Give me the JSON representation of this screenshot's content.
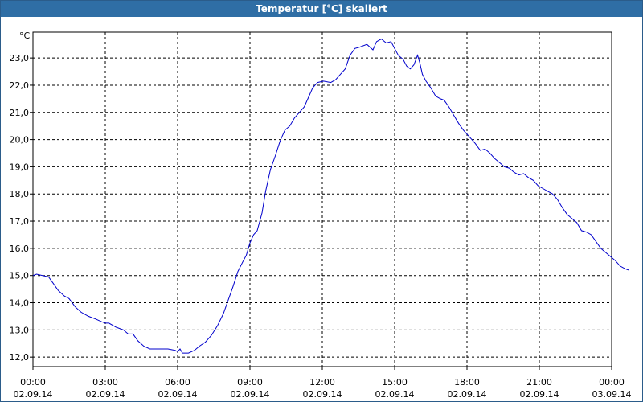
{
  "window": {
    "title": "Temperatur [°C] skaliert"
  },
  "chart_data": {
    "type": "line",
    "title": "Temperatur [°C] skaliert",
    "ylabel": "°C",
    "xlabel": "",
    "ylim": [
      11.65,
      23.95
    ],
    "xlim_hours": [
      0,
      24
    ],
    "grid": true,
    "legend": "none",
    "line_color": "#0000cc",
    "yticks": [
      {
        "value": 12,
        "label": "12,0"
      },
      {
        "value": 13,
        "label": "13,0"
      },
      {
        "value": 14,
        "label": "14,0"
      },
      {
        "value": 15,
        "label": "15,0"
      },
      {
        "value": 16,
        "label": "16,0"
      },
      {
        "value": 17,
        "label": "17,0"
      },
      {
        "value": 18,
        "label": "18,0"
      },
      {
        "value": 19,
        "label": "19,0"
      },
      {
        "value": 20,
        "label": "20,0"
      },
      {
        "value": 21,
        "label": "21,0"
      },
      {
        "value": 22,
        "label": "22,0"
      },
      {
        "value": 23,
        "label": "23,0"
      }
    ],
    "xticks": [
      {
        "hour": 0,
        "time": "00:00",
        "date": "02.09.14"
      },
      {
        "hour": 3,
        "time": "03:00",
        "date": "02.09.14"
      },
      {
        "hour": 6,
        "time": "06:00",
        "date": "02.09.14"
      },
      {
        "hour": 9,
        "time": "09:00",
        "date": "02.09.14"
      },
      {
        "hour": 12,
        "time": "12:00",
        "date": "02.09.14"
      },
      {
        "hour": 15,
        "time": "15:00",
        "date": "02.09.14"
      },
      {
        "hour": 18,
        "time": "18:00",
        "date": "02.09.14"
      },
      {
        "hour": 21,
        "time": "21:00",
        "date": "02.09.14"
      },
      {
        "hour": 24,
        "time": "00:00",
        "date": "03.09.14"
      }
    ],
    "series": [
      {
        "name": "",
        "points": [
          [
            0.0,
            15.0
          ],
          [
            0.15,
            15.05
          ],
          [
            0.4,
            15.0
          ],
          [
            0.65,
            14.95
          ],
          [
            0.85,
            14.7
          ],
          [
            1.05,
            14.45
          ],
          [
            1.3,
            14.25
          ],
          [
            1.5,
            14.15
          ],
          [
            1.75,
            13.85
          ],
          [
            2.0,
            13.65
          ],
          [
            2.3,
            13.5
          ],
          [
            2.6,
            13.4
          ],
          [
            2.85,
            13.3
          ],
          [
            3.0,
            13.25
          ],
          [
            3.15,
            13.25
          ],
          [
            3.45,
            13.1
          ],
          [
            3.75,
            13.0
          ],
          [
            3.95,
            12.85
          ],
          [
            4.15,
            12.85
          ],
          [
            4.35,
            12.6
          ],
          [
            4.6,
            12.4
          ],
          [
            4.85,
            12.3
          ],
          [
            5.2,
            12.3
          ],
          [
            5.6,
            12.3
          ],
          [
            5.9,
            12.25
          ],
          [
            6.0,
            12.2
          ],
          [
            6.1,
            12.3
          ],
          [
            6.2,
            12.15
          ],
          [
            6.45,
            12.15
          ],
          [
            6.7,
            12.25
          ],
          [
            6.9,
            12.4
          ],
          [
            7.15,
            12.55
          ],
          [
            7.4,
            12.8
          ],
          [
            7.65,
            13.15
          ],
          [
            7.9,
            13.6
          ],
          [
            8.1,
            14.1
          ],
          [
            8.3,
            14.6
          ],
          [
            8.5,
            15.15
          ],
          [
            8.7,
            15.5
          ],
          [
            8.85,
            15.75
          ],
          [
            9.0,
            16.2
          ],
          [
            9.15,
            16.5
          ],
          [
            9.3,
            16.65
          ],
          [
            9.5,
            17.3
          ],
          [
            9.65,
            18.1
          ],
          [
            9.85,
            18.9
          ],
          [
            10.05,
            19.4
          ],
          [
            10.25,
            19.95
          ],
          [
            10.45,
            20.35
          ],
          [
            10.65,
            20.5
          ],
          [
            10.85,
            20.8
          ],
          [
            11.05,
            21.0
          ],
          [
            11.25,
            21.2
          ],
          [
            11.45,
            21.6
          ],
          [
            11.6,
            21.9
          ],
          [
            11.8,
            22.1
          ],
          [
            12.05,
            22.15
          ],
          [
            12.35,
            22.1
          ],
          [
            12.55,
            22.2
          ],
          [
            12.75,
            22.4
          ],
          [
            12.95,
            22.6
          ],
          [
            13.15,
            23.1
          ],
          [
            13.35,
            23.35
          ],
          [
            13.55,
            23.4
          ],
          [
            13.85,
            23.5
          ],
          [
            14.1,
            23.3
          ],
          [
            14.25,
            23.6
          ],
          [
            14.45,
            23.7
          ],
          [
            14.65,
            23.55
          ],
          [
            14.85,
            23.6
          ],
          [
            15.0,
            23.35
          ],
          [
            15.15,
            23.1
          ],
          [
            15.35,
            22.95
          ],
          [
            15.5,
            22.7
          ],
          [
            15.65,
            22.6
          ],
          [
            15.8,
            22.75
          ],
          [
            15.95,
            23.1
          ],
          [
            16.05,
            22.8
          ],
          [
            16.15,
            22.4
          ],
          [
            16.3,
            22.15
          ],
          [
            16.5,
            21.9
          ],
          [
            16.7,
            21.6
          ],
          [
            16.9,
            21.5
          ],
          [
            17.05,
            21.45
          ],
          [
            17.25,
            21.2
          ],
          [
            17.45,
            20.9
          ],
          [
            17.65,
            20.6
          ],
          [
            17.85,
            20.35
          ],
          [
            18.1,
            20.1
          ],
          [
            18.35,
            19.85
          ],
          [
            18.55,
            19.6
          ],
          [
            18.75,
            19.65
          ],
          [
            18.95,
            19.5
          ],
          [
            19.15,
            19.3
          ],
          [
            19.35,
            19.15
          ],
          [
            19.55,
            19.0
          ],
          [
            19.75,
            18.95
          ],
          [
            19.95,
            18.8
          ],
          [
            20.15,
            18.7
          ],
          [
            20.35,
            18.75
          ],
          [
            20.55,
            18.6
          ],
          [
            20.75,
            18.5
          ],
          [
            20.95,
            18.3
          ],
          [
            21.15,
            18.2
          ],
          [
            21.35,
            18.1
          ],
          [
            21.55,
            18.0
          ],
          [
            21.75,
            17.8
          ],
          [
            21.95,
            17.5
          ],
          [
            22.15,
            17.25
          ],
          [
            22.35,
            17.1
          ],
          [
            22.55,
            16.95
          ],
          [
            22.75,
            16.65
          ],
          [
            22.95,
            16.6
          ],
          [
            23.15,
            16.5
          ],
          [
            23.35,
            16.25
          ],
          [
            23.55,
            16.0
          ],
          [
            23.75,
            15.85
          ],
          [
            23.95,
            15.7
          ],
          [
            24.15,
            15.55
          ],
          [
            24.35,
            15.35
          ],
          [
            24.55,
            15.25
          ],
          [
            24.7,
            15.2
          ]
        ]
      }
    ]
  }
}
